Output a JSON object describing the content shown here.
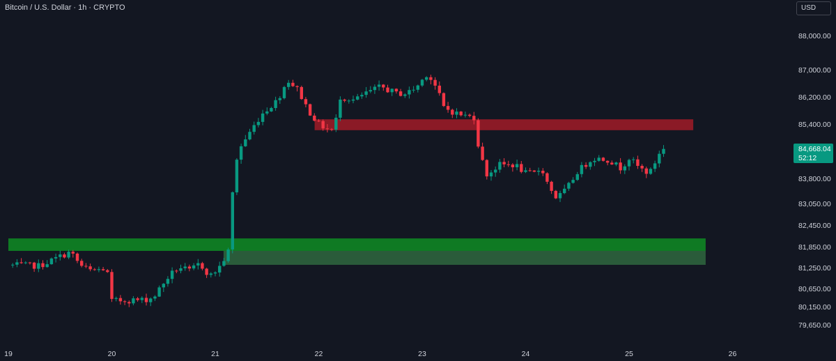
{
  "header": {
    "symbol_title": "Bitcoin / U.S. Dollar · 1h · CRYPTO",
    "currency": "USD"
  },
  "colors": {
    "background": "#131722",
    "up": "#089981",
    "down": "#f23645",
    "resistance_zone": "#8b1a26",
    "support_zone_top": "#0f7a23",
    "support_zone_bottom": "#2a5b3a",
    "price_tag": "#089981",
    "axis_text": "#d1d4dc"
  },
  "chart_data": {
    "type": "candlestick",
    "symbol": "Bitcoin / U.S. Dollar",
    "interval": "1h",
    "x_ticks": [
      "19",
      "20",
      "21",
      "22",
      "23",
      "24",
      "25",
      "26"
    ],
    "x_range": [
      19,
      26.2
    ],
    "y_ticks": [
      88000,
      87000,
      86200,
      85400,
      83800,
      83050,
      82450,
      81850,
      81250,
      80650,
      80150,
      79650
    ],
    "y_tick_labels": [
      "88,000.00",
      "87,000.00",
      "86,200.00",
      "85,400.00",
      "83,800.00",
      "83,050.00",
      "82,450.00",
      "81,850.00",
      "81,250.00",
      "80,650.00",
      "80,150.00",
      "79,650.00"
    ],
    "last_price": 84668.04,
    "last_price_label": "84,668.04",
    "countdown": "52:12",
    "zones": [
      {
        "name": "resistance",
        "x_start": 21.96,
        "x_end": 25.62,
        "y_low": 85220,
        "y_high": 85540
      },
      {
        "name": "support-upper",
        "x_start": 19.0,
        "x_end": 25.74,
        "y_low": 81730,
        "y_high": 82080
      },
      {
        "name": "support-lower",
        "x_start": 21.08,
        "x_end": 25.74,
        "y_low": 81330,
        "y_high": 81730
      }
    ],
    "path_points": [
      [
        19.0,
        81320
      ],
      [
        19.3,
        81300
      ],
      [
        19.5,
        81570
      ],
      [
        19.6,
        81700
      ],
      [
        19.7,
        81300
      ],
      [
        19.8,
        81150
      ],
      [
        19.95,
        81230
      ],
      [
        20.0,
        80300
      ],
      [
        20.15,
        80330
      ],
      [
        20.3,
        80330
      ],
      [
        20.4,
        80400
      ],
      [
        20.55,
        81000
      ],
      [
        20.65,
        81270
      ],
      [
        20.75,
        81150
      ],
      [
        20.85,
        81370
      ],
      [
        20.95,
        81000
      ],
      [
        21.05,
        81300
      ],
      [
        21.15,
        81850
      ],
      [
        21.17,
        83650
      ],
      [
        21.22,
        84600
      ],
      [
        21.3,
        85000
      ],
      [
        21.45,
        85700
      ],
      [
        21.6,
        86100
      ],
      [
        21.7,
        86700
      ],
      [
        21.8,
        86400
      ],
      [
        21.9,
        85800
      ],
      [
        22.0,
        85400
      ],
      [
        22.08,
        85250
      ],
      [
        22.15,
        85200
      ],
      [
        22.2,
        86200
      ],
      [
        22.35,
        86100
      ],
      [
        22.45,
        86300
      ],
      [
        22.6,
        86500
      ],
      [
        22.75,
        86300
      ],
      [
        22.85,
        86300
      ],
      [
        22.95,
        86500
      ],
      [
        23.05,
        86900
      ],
      [
        23.15,
        86400
      ],
      [
        23.2,
        85900
      ],
      [
        23.3,
        85750
      ],
      [
        23.4,
        85650
      ],
      [
        23.5,
        85600
      ],
      [
        23.55,
        84650
      ],
      [
        23.62,
        83900
      ],
      [
        23.75,
        84200
      ],
      [
        23.9,
        84200
      ],
      [
        24.0,
        83950
      ],
      [
        24.1,
        83950
      ],
      [
        24.15,
        84150
      ],
      [
        24.22,
        83600
      ],
      [
        24.3,
        83200
      ],
      [
        24.4,
        83500
      ],
      [
        24.5,
        84000
      ],
      [
        24.65,
        84400
      ],
      [
        24.8,
        84350
      ],
      [
        24.92,
        84100
      ],
      [
        25.0,
        84400
      ],
      [
        25.1,
        84100
      ],
      [
        25.2,
        83950
      ],
      [
        25.3,
        84600
      ],
      [
        25.35,
        84668
      ]
    ]
  }
}
